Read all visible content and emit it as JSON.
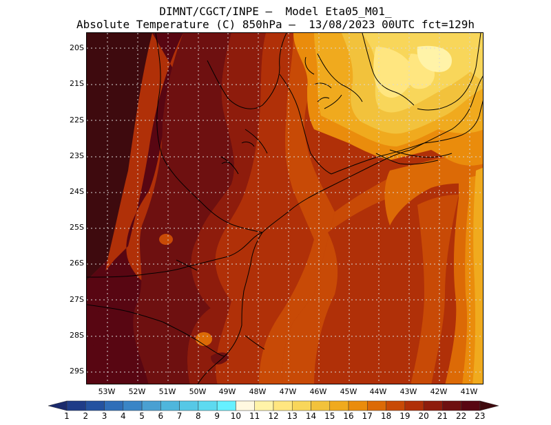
{
  "title_line1": "DIMNT/CGCT/INPE –  Model Eta05_M01_",
  "title_line2": "Absolute Temperature (C) 850hPa –  13/08/2023 00UTC fct=129h",
  "lat_labels": [
    "20S",
    "21S",
    "22S",
    "23S",
    "24S",
    "25S",
    "26S",
    "27S",
    "28S",
    "29S"
  ],
  "lon_labels": [
    "53W",
    "52W",
    "51W",
    "50W",
    "49W",
    "48W",
    "47W",
    "46W",
    "45W",
    "44W",
    "43W",
    "42W",
    "41W"
  ],
  "colorbar": {
    "labels": [
      "1",
      "2",
      "3",
      "4",
      "5",
      "6",
      "7",
      "8",
      "9",
      "10",
      "11",
      "12",
      "13",
      "14",
      "15",
      "16",
      "17",
      "18",
      "19",
      "20",
      "21",
      "22",
      "23"
    ],
    "colors": [
      "#1a2a6c",
      "#1f3c88",
      "#2452a0",
      "#2f6eb8",
      "#3a85c6",
      "#4aa0d2",
      "#4fb6dc",
      "#56c8e6",
      "#5ddaf0",
      "#66f0ff",
      "#fff8e0",
      "#fff3a8",
      "#ffe680",
      "#f8d65a",
      "#f2c23c",
      "#f0aa1e",
      "#ea8c0c",
      "#dc6a06",
      "#c84a06",
      "#b03008",
      "#8e1c0c",
      "#6e1010",
      "#580612",
      "#3e0a0e"
    ]
  }
}
